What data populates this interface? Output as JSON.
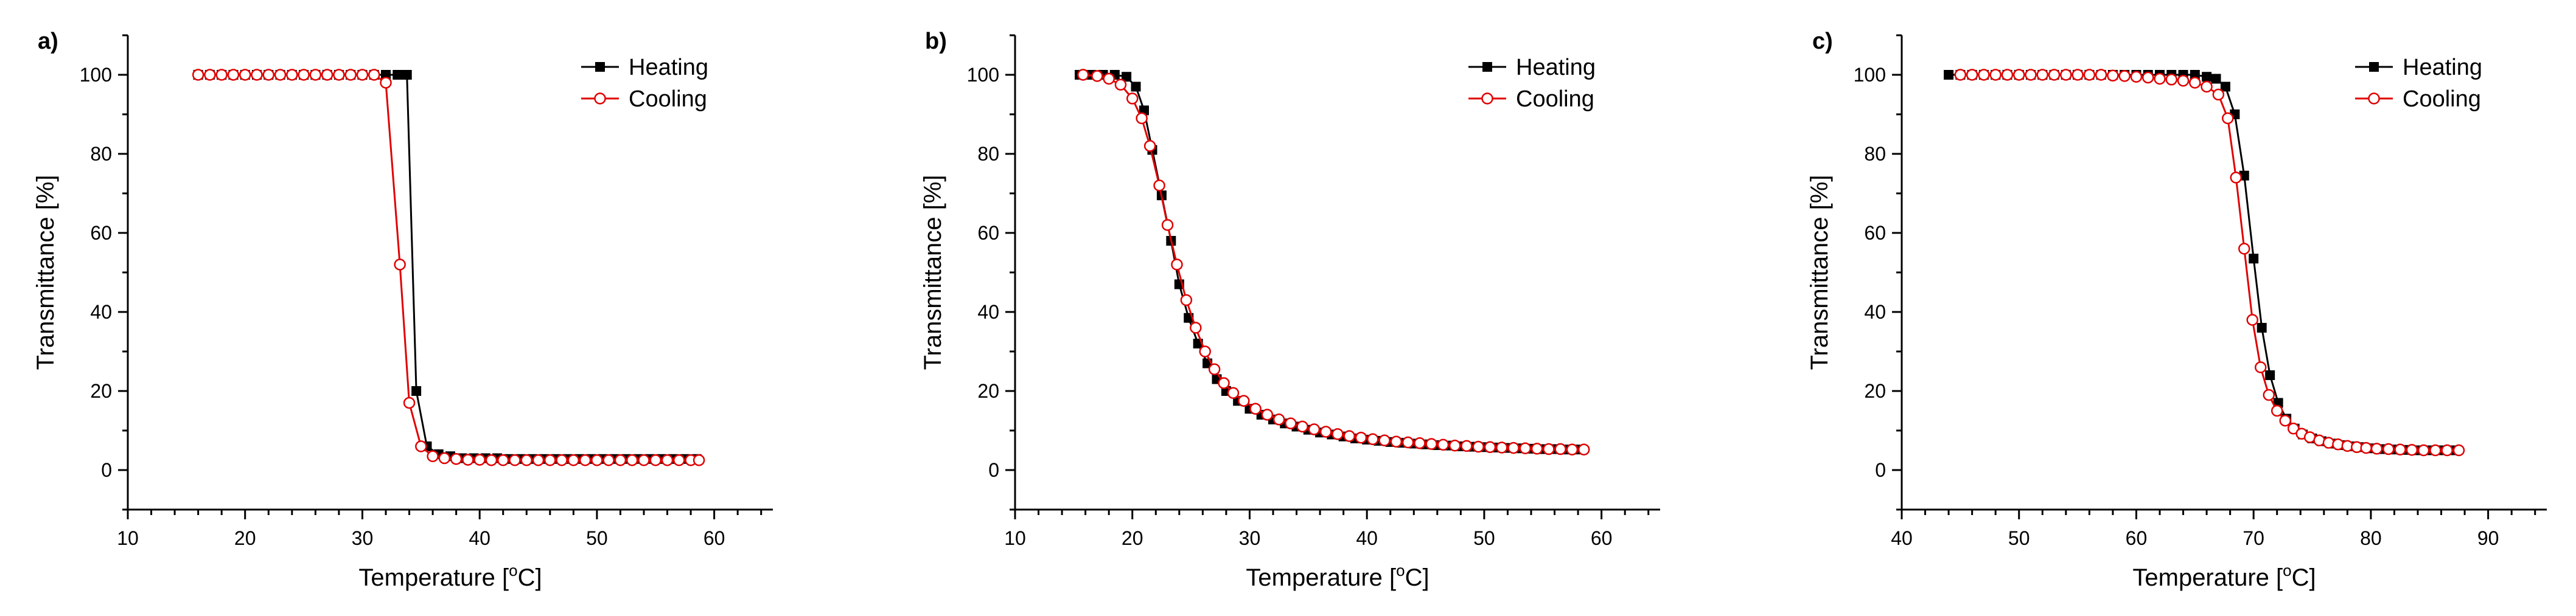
{
  "chart_data": [
    {
      "type": "line",
      "panel_label": "a)",
      "xlabel": "Temperature [",
      "xlabel_sup": "o",
      "xlabel_end": "C]",
      "ylabel": "Transmittance [%]",
      "xlim": [
        10,
        65
      ],
      "ylim": [
        -10,
        110
      ],
      "xticks": [
        10,
        20,
        30,
        40,
        50,
        60
      ],
      "yticks": [
        0,
        20,
        40,
        60,
        80,
        100
      ],
      "legend": {
        "position": "top-right",
        "entries": [
          "Heating",
          "Cooling"
        ]
      },
      "series": [
        {
          "name": "Heating",
          "color": "#000000",
          "marker": "filled-square",
          "x": [
            16,
            17,
            18,
            19,
            20,
            21,
            22,
            23,
            24,
            25,
            26,
            27,
            28,
            29,
            30,
            31,
            32,
            33,
            33.8,
            34.6,
            35.5,
            36.5,
            37.5,
            38.5,
            39.5,
            40.5,
            41.5,
            42.5,
            43.5,
            44.5,
            45.5,
            46.5,
            47.5,
            48.5,
            49.5,
            50.5,
            51.5,
            52.5,
            53.5,
            54.5,
            55.5,
            56.5,
            57.5,
            58.5
          ],
          "y": [
            100,
            100,
            100,
            100,
            100,
            100,
            100,
            100,
            100,
            100,
            100,
            100,
            100,
            100,
            100,
            100,
            100,
            100,
            100,
            20,
            6,
            4,
            3.5,
            3,
            3,
            3,
            3,
            2.8,
            2.8,
            2.8,
            2.8,
            2.8,
            2.8,
            2.8,
            2.8,
            2.8,
            2.8,
            2.8,
            2.8,
            2.8,
            2.8,
            2.8,
            2.8,
            2.8
          ]
        },
        {
          "name": "Cooling",
          "color": "#e00000",
          "marker": "open-circle",
          "x": [
            16,
            17,
            18,
            19,
            20,
            21,
            22,
            23,
            24,
            25,
            26,
            27,
            28,
            29,
            30,
            31,
            32,
            33.2,
            34,
            35,
            36,
            37,
            38,
            39,
            40,
            41,
            42,
            43,
            44,
            45,
            46,
            47,
            48,
            49,
            50,
            51,
            52,
            53,
            54,
            55,
            56,
            57,
            58,
            58.7
          ],
          "y": [
            100,
            100,
            100,
            100,
            100,
            100,
            100,
            100,
            100,
            100,
            100,
            100,
            100,
            100,
            100,
            100,
            98,
            52,
            17,
            6,
            3.5,
            3,
            2.8,
            2.6,
            2.6,
            2.5,
            2.5,
            2.5,
            2.5,
            2.5,
            2.5,
            2.5,
            2.5,
            2.5,
            2.5,
            2.5,
            2.5,
            2.5,
            2.5,
            2.5,
            2.5,
            2.5,
            2.5,
            2.5
          ]
        }
      ]
    },
    {
      "type": "line",
      "panel_label": "b)",
      "xlabel": "Temperature [",
      "xlabel_sup": "o",
      "xlabel_end": "C]",
      "ylabel": "Transmittance [%]",
      "xlim": [
        10,
        65
      ],
      "ylim": [
        -10,
        110
      ],
      "xticks": [
        10,
        20,
        30,
        40,
        50,
        60
      ],
      "yticks": [
        0,
        20,
        40,
        60,
        80,
        100
      ],
      "legend": {
        "position": "top-right",
        "entries": [
          "Heating",
          "Cooling"
        ]
      },
      "series": [
        {
          "name": "Heating",
          "color": "#000000",
          "marker": "filled-square",
          "x": [
            15.5,
            16.5,
            17.5,
            18.5,
            19.5,
            20.3,
            21,
            21.7,
            22.5,
            23.3,
            24,
            24.8,
            25.6,
            26.4,
            27.2,
            28,
            29,
            30,
            31,
            32,
            33,
            34,
            35,
            36,
            37,
            38,
            39,
            40,
            41,
            42,
            43,
            44,
            45,
            46,
            47,
            48,
            49,
            50,
            51,
            52,
            53,
            54,
            55,
            56,
            57,
            58
          ],
          "y": [
            100,
            100,
            100,
            100,
            99.5,
            97,
            91,
            81,
            69.5,
            58,
            47,
            38.5,
            32,
            27,
            23,
            20,
            17.5,
            15.5,
            14,
            12.8,
            11.8,
            11,
            10.2,
            9.5,
            9,
            8.5,
            8,
            7.7,
            7.4,
            7.1,
            6.9,
            6.7,
            6.5,
            6.3,
            6.2,
            6,
            5.9,
            5.8,
            5.7,
            5.6,
            5.5,
            5.4,
            5.3,
            5.3,
            5.2,
            5.2
          ]
        },
        {
          "name": "Cooling",
          "color": "#e00000",
          "marker": "open-circle",
          "x": [
            15.8,
            17,
            18,
            19,
            20,
            20.8,
            21.5,
            22.3,
            23,
            23.8,
            24.6,
            25.4,
            26.2,
            27,
            27.8,
            28.6,
            29.5,
            30.5,
            31.5,
            32.5,
            33.5,
            34.5,
            35.5,
            36.5,
            37.5,
            38.5,
            39.5,
            40.5,
            41.5,
            42.5,
            43.5,
            44.5,
            45.5,
            46.5,
            47.5,
            48.5,
            49.5,
            50.5,
            51.5,
            52.5,
            53.5,
            54.5,
            55.5,
            56.5,
            57.5,
            58.5
          ],
          "y": [
            100,
            99.7,
            99,
            97.5,
            94,
            89,
            82,
            72,
            62,
            52,
            43,
            36,
            30,
            25.5,
            22,
            19.5,
            17.5,
            15.5,
            14,
            12.8,
            11.8,
            11,
            10.3,
            9.7,
            9.1,
            8.6,
            8.2,
            7.8,
            7.5,
            7.2,
            7,
            6.8,
            6.6,
            6.4,
            6.2,
            6.1,
            5.9,
            5.8,
            5.7,
            5.6,
            5.5,
            5.4,
            5.3,
            5.3,
            5.2,
            5.2
          ]
        }
      ]
    },
    {
      "type": "line",
      "panel_label": "c)",
      "xlabel": "Temperature [",
      "xlabel_sup": "o",
      "xlabel_end": "C]",
      "ylabel": "Transmittance [%]",
      "xlim": [
        40,
        95
      ],
      "ylim": [
        -10,
        110
      ],
      "xticks": [
        40,
        50,
        60,
        70,
        80,
        90
      ],
      "yticks": [
        0,
        20,
        40,
        60,
        80,
        100
      ],
      "legend": {
        "position": "top-right",
        "entries": [
          "Heating",
          "Cooling"
        ]
      },
      "series": [
        {
          "name": "Heating",
          "color": "#000000",
          "marker": "filled-square",
          "x": [
            44,
            45,
            46,
            47,
            48,
            49,
            50,
            51,
            52,
            53,
            54,
            55,
            56,
            57,
            58,
            59,
            60,
            61,
            62,
            63,
            64,
            65,
            66,
            66.8,
            67.6,
            68.4,
            69.2,
            70,
            70.7,
            71.4,
            72.1,
            72.8,
            73.5,
            74.2,
            75,
            75.8,
            76.6,
            77.4,
            78.2,
            79,
            80,
            81,
            82,
            83,
            84,
            85,
            86,
            87
          ],
          "y": [
            100,
            100,
            100,
            100,
            100,
            100,
            100,
            100,
            100,
            100,
            100,
            100,
            100,
            100,
            100,
            100,
            100,
            100,
            100,
            100,
            100,
            100,
            99.5,
            99,
            97,
            90,
            74.5,
            53.5,
            36,
            24,
            17,
            13,
            10.5,
            9,
            8,
            7.3,
            6.7,
            6.3,
            6,
            5.8,
            5.5,
            5.3,
            5.2,
            5.1,
            5,
            5,
            5,
            5
          ]
        },
        {
          "name": "Cooling",
          "color": "#e00000",
          "marker": "open-circle",
          "x": [
            45,
            46,
            47,
            48,
            49,
            50,
            51,
            52,
            53,
            54,
            55,
            56,
            57,
            58,
            59,
            60,
            61,
            62,
            63,
            64,
            65,
            66,
            67,
            67.8,
            68.5,
            69.2,
            69.9,
            70.6,
            71.3,
            72,
            72.7,
            73.4,
            74.1,
            74.8,
            75.6,
            76.4,
            77.2,
            78,
            78.8,
            79.6,
            80.5,
            81.5,
            82.5,
            83.5,
            84.5,
            85.5,
            86.5,
            87.5
          ],
          "y": [
            100,
            100,
            100,
            100,
            100,
            100,
            100,
            100,
            100,
            100,
            100,
            100,
            100,
            99.8,
            99.7,
            99.5,
            99.3,
            99,
            98.8,
            98.5,
            98,
            97,
            95,
            89,
            74,
            56,
            38,
            26,
            19,
            15,
            12.5,
            10.5,
            9.2,
            8.3,
            7.5,
            6.9,
            6.5,
            6.1,
            5.8,
            5.6,
            5.4,
            5.3,
            5.2,
            5.1,
            5,
            5,
            5,
            5
          ]
        }
      ]
    }
  ]
}
